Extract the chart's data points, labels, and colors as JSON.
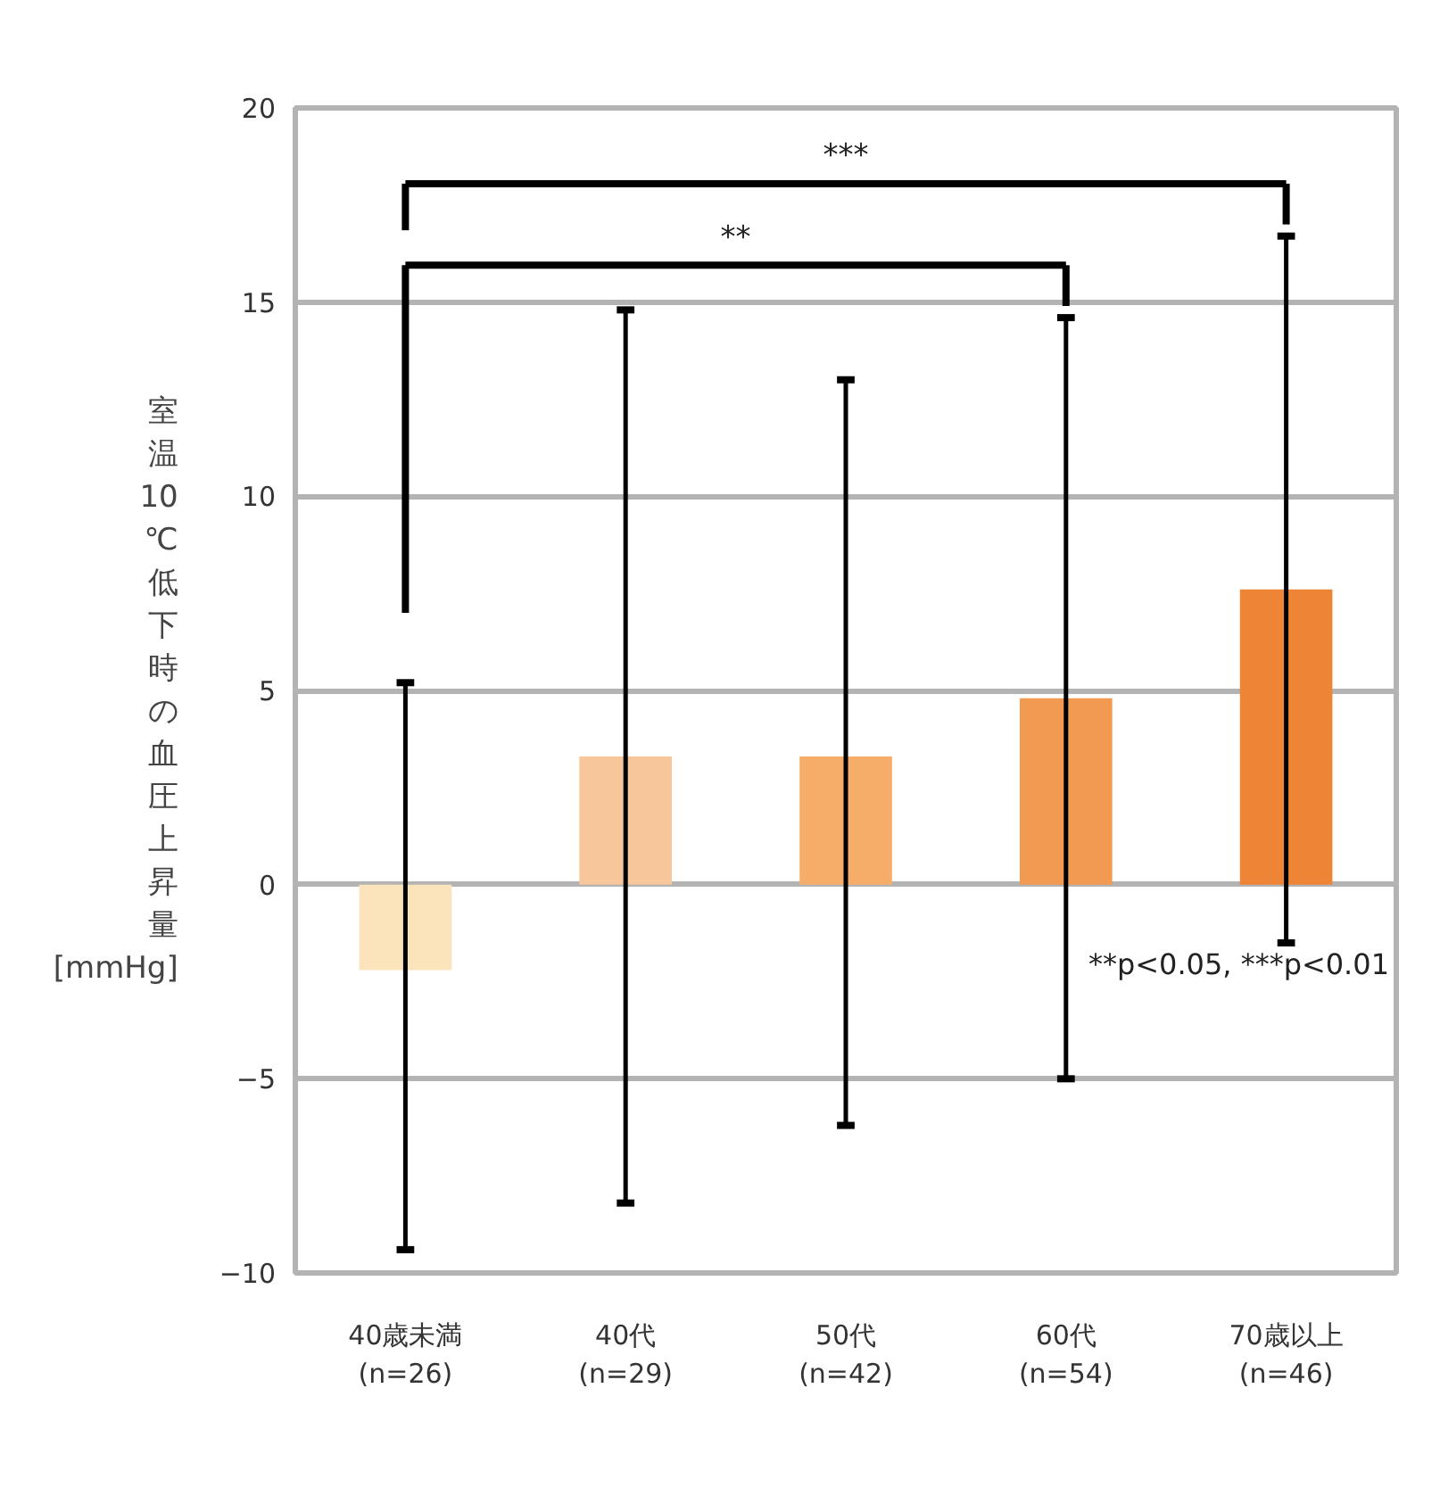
{
  "chart_data": {
    "type": "bar",
    "ylabel": "室温10℃低下時の血圧上昇量[mmHg]",
    "categories": [
      "40歳未満\n(n=26)",
      "40代\n(n=29)",
      "50代\n(n=42)",
      "60代\n(n=54)",
      "70歳以上\n(n=46)"
    ],
    "values": [
      -2.2,
      3.3,
      3.3,
      4.8,
      7.6
    ],
    "colors": [
      "#fbe3bb",
      "#f7c69b",
      "#f6ad6a",
      "#f29a52",
      "#ee8536"
    ],
    "errors": [
      [
        -9.4,
        5.2
      ],
      [
        -8.2,
        14.8
      ],
      [
        -6.2,
        13.0
      ],
      [
        -5.0,
        14.6
      ],
      [
        -1.5,
        16.7
      ]
    ],
    "ylim": [
      -10,
      20
    ],
    "yticks": [
      -10,
      -5,
      0,
      5,
      10,
      15,
      20
    ],
    "grid": "y",
    "annotations": [
      "**",
      "***",
      "**p<0.05, ***p<0.01"
    ]
  }
}
